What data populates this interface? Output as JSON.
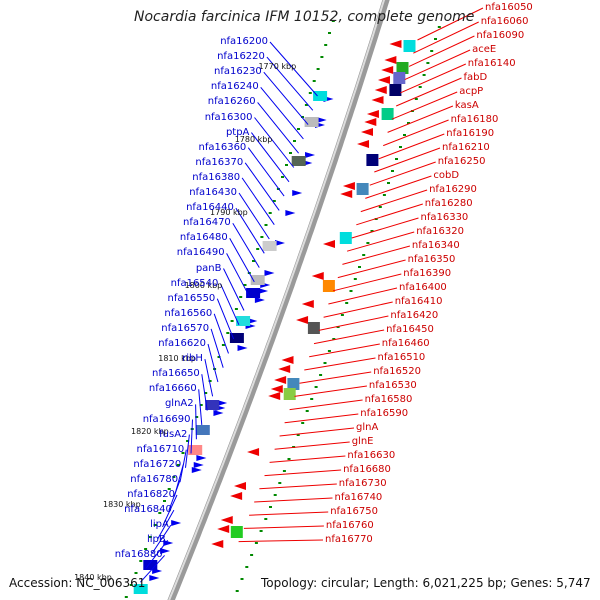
{
  "title": "Nocardia farcinica IFM 10152, complete genome",
  "footer": {
    "accession": "Accession: NC_006361",
    "topology": "Topology: circular; Length: 6,021,225 bp; Genes: 5,747"
  },
  "scale_labels": [
    "1770 kbp",
    "1780 kbp",
    "1790 kbp",
    "1800 kbp",
    "1810 kbp",
    "1820 kbp",
    "1830 kbp",
    "1840 kbp"
  ],
  "left_labels": [
    "nfa16200",
    "nfa16220",
    "nfa16230",
    "nfa16240",
    "nfa16260",
    "nfa16300",
    "ptpA",
    "nfa16360",
    "nfa16370",
    "nfa16380",
    "nfa16430",
    "nfa16440",
    "nfa16470",
    "nfa16480",
    "nfa16490",
    "panB",
    "nfa16540",
    "nfa16550",
    "nfa16560",
    "nfa16570",
    "nfa16620",
    "ribH",
    "nfa16650",
    "nfa16660",
    "glnA2",
    "nfa16690",
    "fusA2",
    "nfa16710",
    "nfa16720",
    "nfa16780",
    "nfa16820",
    "nfa16840",
    "lipA",
    "lipB",
    "nfa16880"
  ],
  "right_labels": [
    "nfa16050",
    "nfa16060",
    "nfa16090",
    "aceE",
    "nfa16140",
    "fabD",
    "acpP",
    "kasA",
    "nfa16180",
    "nfa16190",
    "nfa16210",
    "nfa16250",
    "cobD",
    "nfa16290",
    "nfa16280",
    "nfa16330",
    "nfa16320",
    "nfa16340",
    "nfa16350",
    "nfa16390",
    "nfa16400",
    "nfa16410",
    "nfa16420",
    "nfa16450",
    "nfa16460",
    "nfa16510",
    "nfa16520",
    "nfa16530",
    "nfa16580",
    "nfa16590",
    "glnA",
    "glnE",
    "nfa16630",
    "nfa16680",
    "nfa16730",
    "nfa16740",
    "nfa16750",
    "nfa16760",
    "nfa16770"
  ],
  "colors": {
    "forward": "#0000ee",
    "reverse": "#ee0000",
    "backbone": "#888888",
    "tick": "#008800"
  }
}
